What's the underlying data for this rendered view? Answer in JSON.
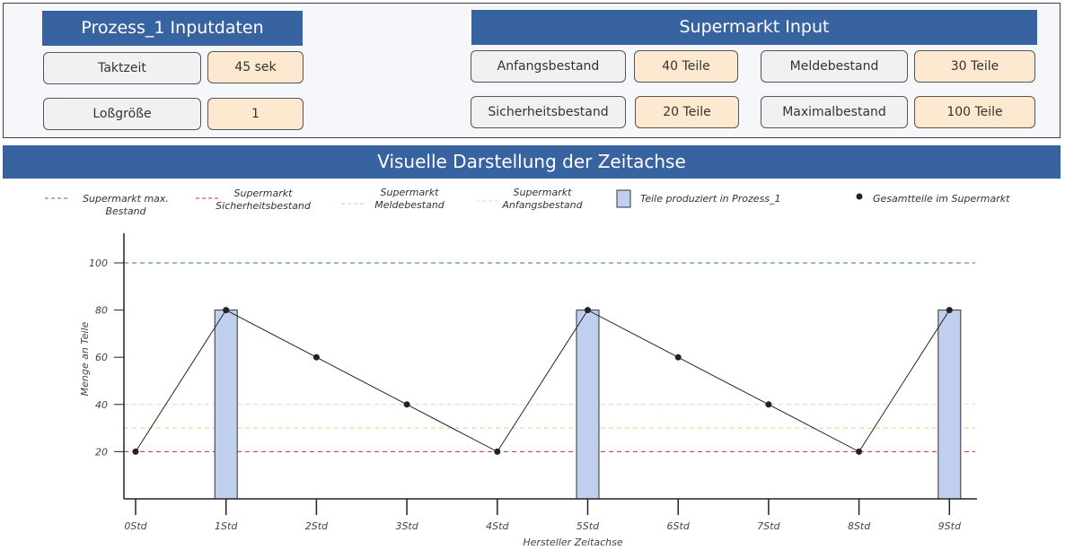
{
  "prozess_panel": {
    "title": "Prozess_1 Inputdaten",
    "fields": [
      {
        "label": "Taktzeit",
        "value": "45 sek"
      },
      {
        "label": "Loßgröße",
        "value": "1"
      }
    ]
  },
  "supermarkt_panel": {
    "title": "Supermarkt Input",
    "fields": [
      {
        "label": "Anfangsbestand",
        "value": "40 Teile"
      },
      {
        "label": "Meldebestand",
        "value": "30 Teile"
      },
      {
        "label": "Sicherheitsbestand",
        "value": "20 Teile"
      },
      {
        "label": "Maximalbestand",
        "value": "100 Teile"
      }
    ]
  },
  "timeline_title": "Visuelle Darstellung der Zeitachse",
  "colors": {
    "header": "#3764a0",
    "label_box": "#f1f1f1",
    "value_box": "#fde9cf",
    "bar": "#c0cfee",
    "max_line": "#2f7f74",
    "safety_line": "#cc2a2a",
    "reorder_line": "#f2c48a",
    "start_line": "#d8d8d8"
  },
  "chart_data": {
    "type": "bar+line",
    "xlabel": "Hersteller Zeitachse",
    "ylabel": "Menge an Teile",
    "categories": [
      "0Std",
      "1Std",
      "2Std",
      "3Std",
      "4Std",
      "5Std",
      "6Std",
      "7Std",
      "8Std",
      "9Std"
    ],
    "ylim": [
      0,
      105
    ],
    "yticks": [
      20,
      40,
      60,
      80,
      100
    ],
    "bars": {
      "name": "Teile produziert in Prozess_1",
      "values": [
        0,
        80,
        0,
        0,
        0,
        80,
        0,
        0,
        0,
        80
      ]
    },
    "series": [
      {
        "name": "Gesamtteile im Supermarkt",
        "values": [
          20,
          80,
          60,
          40,
          20,
          80,
          60,
          40,
          20,
          80
        ]
      }
    ],
    "reference_lines": [
      {
        "name": "Supermarkt max. Bestand",
        "value": 100,
        "color": "#2f7f74"
      },
      {
        "name": "Supermarkt Sicherheitsbestand",
        "value": 20,
        "color": "#cc2a2a"
      },
      {
        "name": "Supermarkt Meldebestand",
        "value": 30,
        "color": "#f2c48a"
      },
      {
        "name": "Supermarkt Anfangsbestand",
        "value": 40,
        "color": "#d8d8d8"
      }
    ],
    "legend": [
      {
        "line1": "Supermarkt max.",
        "line2": "Bestand"
      },
      {
        "line1": "Supermarkt",
        "line2": "Sicherheitsbestand"
      },
      {
        "line1": "Supermarkt",
        "line2": "Meldebestand"
      },
      {
        "line1": "Supermarkt",
        "line2": "Anfangsbestand"
      },
      {
        "line1": "Teile produziert in Prozess_1"
      },
      {
        "line1": "Gesamtteile im Supermarkt"
      }
    ],
    "legend_placement": "top"
  }
}
